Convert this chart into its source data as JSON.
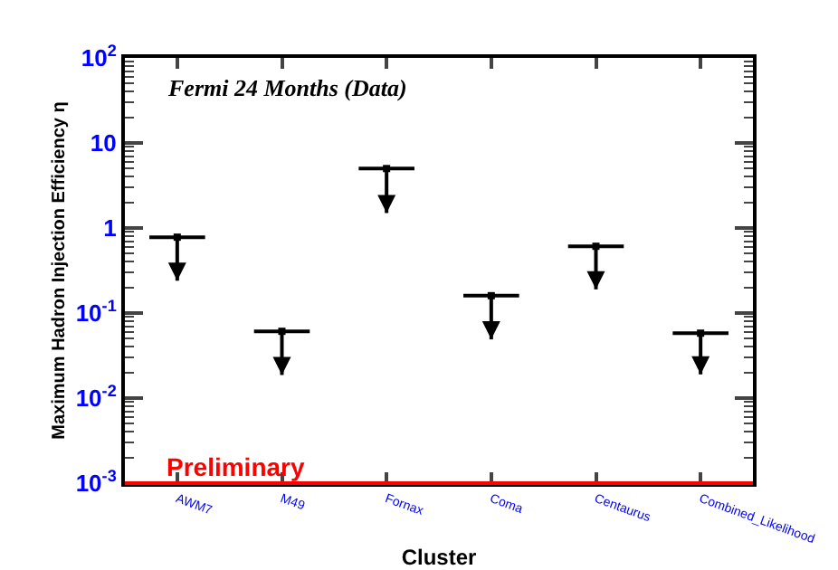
{
  "chart_data": {
    "type": "scatter",
    "xlabel": "Cluster",
    "ylabel": "Maximum Hadron Injection Efficiency η",
    "categories": [
      "AWM7",
      "M49",
      "Fornax",
      "Coma",
      "Centaurus",
      "Combined_Likelihood"
    ],
    "values": [
      0.78,
      0.061,
      5.0,
      0.16,
      0.61,
      0.058
    ],
    "errors": [
      [
        0.24,
        0.78
      ],
      [
        0.0187,
        0.061
      ],
      [
        1.5,
        5.0
      ],
      [
        0.049,
        0.16
      ],
      [
        0.19,
        0.61
      ],
      [
        0.019,
        0.058
      ]
    ],
    "color": "#000000",
    "log": true,
    "ylim": [
      0.001,
      100
    ],
    "yticks": [
      {
        "value": 0.001,
        "label": "10$^{-3}$"
      },
      {
        "value": 0.01,
        "label": "10$^{-2}$"
      },
      {
        "value": 0.1,
        "label": "10$^{-1}$"
      },
      1,
      10,
      {
        "value": 100,
        "label": "10$^{2}$"
      }
    ],
    "grid": false,
    "legend": false,
    "annotations": [
      "Fermi 24 Months (Data)",
      "Preliminary"
    ]
  }
}
